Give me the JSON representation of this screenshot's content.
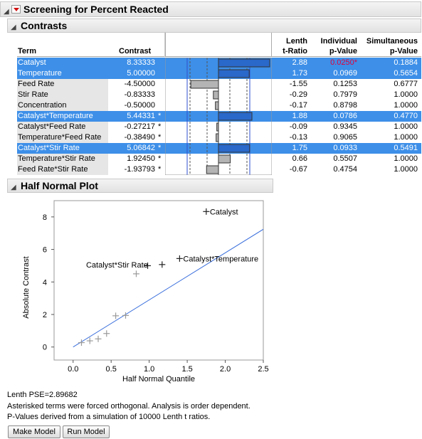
{
  "report": {
    "title": "Screening for Percent Reacted",
    "contrasts_title": "Contrasts",
    "halfnormal_title": "Half Normal Plot"
  },
  "table": {
    "headers": {
      "term": "Term",
      "contrast": "Contrast",
      "lenth1": "Lenth",
      "lenth2": "t-Ratio",
      "ind1": "Individual",
      "ind2": "p-Value",
      "sim1": "Simultaneous",
      "sim2": "p-Value"
    },
    "bar_scale_max": 8.33333,
    "rows": [
      {
        "term": "Catalyst",
        "contrast": "8.33333",
        "star": "",
        "t": "2.88",
        "p": "0.0250*",
        "sp": "0.1884",
        "selected": true,
        "value": 8.33333,
        "p_color": "#e0003c"
      },
      {
        "term": "Temperature",
        "contrast": "5.00000",
        "star": "",
        "t": "1.73",
        "p": "0.0969",
        "sp": "0.5654",
        "selected": true,
        "value": 5.0
      },
      {
        "term": "Feed Rate",
        "contrast": "-4.50000",
        "star": "",
        "t": "-1.55",
        "p": "0.1253",
        "sp": "0.6777",
        "selected": false,
        "value": -4.5
      },
      {
        "term": "Stir Rate",
        "contrast": "-0.83333",
        "star": "",
        "t": "-0.29",
        "p": "0.7979",
        "sp": "1.0000",
        "selected": false,
        "value": -0.83333
      },
      {
        "term": "Concentration",
        "contrast": "-0.50000",
        "star": "",
        "t": "-0.17",
        "p": "0.8798",
        "sp": "1.0000",
        "selected": false,
        "value": -0.5
      },
      {
        "term": "Catalyst*Temperature",
        "contrast": "5.44331",
        "star": "*",
        "t": "1.88",
        "p": "0.0786",
        "sp": "0.4770",
        "selected": true,
        "value": 5.44331
      },
      {
        "term": "Catalyst*Feed Rate",
        "contrast": "-0.27217",
        "star": "*",
        "t": "-0.09",
        "p": "0.9345",
        "sp": "1.0000",
        "selected": false,
        "value": -0.27217
      },
      {
        "term": "Temperature*Feed Rate",
        "contrast": "-0.38490",
        "star": "*",
        "t": "-0.13",
        "p": "0.9065",
        "sp": "1.0000",
        "selected": false,
        "value": -0.3849
      },
      {
        "term": "Catalyst*Stir Rate",
        "contrast": "5.06842",
        "star": "*",
        "t": "1.75",
        "p": "0.0933",
        "sp": "0.5491",
        "selected": true,
        "value": 5.06842
      },
      {
        "term": "Temperature*Stir Rate",
        "contrast": "1.92450",
        "star": "*",
        "t": "0.66",
        "p": "0.5507",
        "sp": "1.0000",
        "selected": false,
        "value": 1.9245
      },
      {
        "term": "Feed Rate*Stir Rate",
        "contrast": "-1.93793",
        "star": "*",
        "t": "-0.67",
        "p": "0.4754",
        "sp": "1.0000",
        "selected": false,
        "value": -1.93793
      }
    ]
  },
  "chart_data": {
    "type": "scatter",
    "xlabel": "Half Normal Quantile",
    "ylabel": "Absolute Contrast",
    "xlim": [
      -0.25,
      2.5
    ],
    "ylim": [
      -0.8,
      9
    ],
    "xticks": [
      "0.0",
      "0.5",
      "1.0",
      "1.5",
      "2.0",
      "2.5"
    ],
    "xtick_values": [
      0,
      0.5,
      1.0,
      1.5,
      2.0,
      2.5
    ],
    "yticks": [
      "0",
      "2",
      "4",
      "6",
      "8"
    ],
    "ytick_values": [
      0,
      2,
      4,
      6,
      8
    ],
    "line": {
      "x": [
        0,
        2.5
      ],
      "y": [
        0,
        7.24
      ]
    },
    "line_color": "#3a6fdc",
    "points": [
      {
        "x": 0.11,
        "y": 0.27,
        "label": "",
        "dark": false
      },
      {
        "x": 0.22,
        "y": 0.38,
        "label": "",
        "dark": false
      },
      {
        "x": 0.33,
        "y": 0.5,
        "label": "",
        "dark": false
      },
      {
        "x": 0.44,
        "y": 0.83,
        "label": "",
        "dark": false
      },
      {
        "x": 0.56,
        "y": 1.92,
        "label": "",
        "dark": false
      },
      {
        "x": 0.69,
        "y": 1.94,
        "label": "",
        "dark": false
      },
      {
        "x": 0.83,
        "y": 4.5,
        "label": "",
        "dark": false
      },
      {
        "x": 0.98,
        "y": 5.0,
        "label": "",
        "dark": true
      },
      {
        "x": 1.17,
        "y": 5.07,
        "label": "Catalyst*Stir Rate",
        "dark": true,
        "label_side": "left"
      },
      {
        "x": 1.4,
        "y": 5.44,
        "label": "Catalyst*Temperature",
        "dark": true,
        "label_side": "right"
      },
      {
        "x": 1.75,
        "y": 8.33,
        "label": "Catalyst",
        "dark": true,
        "label_side": "right"
      }
    ]
  },
  "footer": {
    "pse": "Lenth PSE=2.89682",
    "note1": "Asterisked terms were forced orthogonal. Analysis is order dependent.",
    "note2": "P-Values derived from a simulation of 10000 Lenth t ratios."
  },
  "buttons": {
    "make_model": "Make Model",
    "run_model": "Run Model"
  }
}
